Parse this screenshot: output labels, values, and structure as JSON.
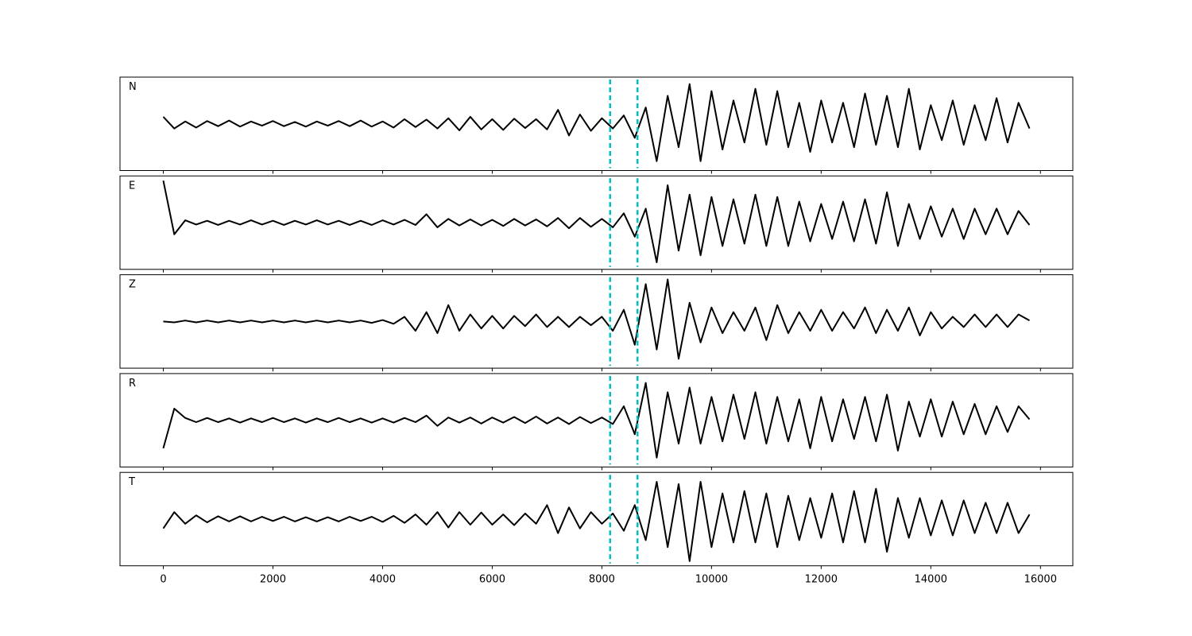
{
  "chart_data": {
    "type": "line",
    "subplots": true,
    "line_color": "#000000",
    "vlines": [
      8150,
      8650
    ],
    "vline_color": "#00bfbf",
    "xlim": [
      -790,
      16590
    ],
    "ylim": [
      -1,
      1
    ],
    "xticks": [
      0,
      2000,
      4000,
      6000,
      8000,
      10000,
      12000,
      14000,
      16000
    ],
    "x": [
      0,
      200,
      400,
      600,
      800,
      1000,
      1200,
      1400,
      1600,
      1800,
      2000,
      2200,
      2400,
      2600,
      2800,
      3000,
      3200,
      3400,
      3600,
      3800,
      4000,
      4200,
      4400,
      4600,
      4800,
      5000,
      5200,
      5400,
      5600,
      5800,
      6000,
      6200,
      6400,
      6600,
      6800,
      7000,
      7200,
      7400,
      7600,
      7800,
      8000,
      8200,
      8400,
      8600,
      8800,
      9000,
      9200,
      9400,
      9600,
      9800,
      10000,
      10200,
      10400,
      10600,
      10800,
      11000,
      11200,
      11400,
      11600,
      11800,
      12000,
      12200,
      12400,
      12600,
      12800,
      13000,
      13200,
      13400,
      13600,
      13800,
      14000,
      14200,
      14400,
      14600,
      14800,
      15000,
      15200,
      15400,
      15600,
      15800
    ],
    "series": [
      {
        "name": "N",
        "values": [
          0.15,
          -0.1,
          0.05,
          -0.08,
          0.06,
          -0.05,
          0.07,
          -0.06,
          0.05,
          -0.04,
          0.06,
          -0.05,
          0.04,
          -0.06,
          0.05,
          -0.04,
          0.06,
          -0.05,
          0.07,
          -0.06,
          0.05,
          -0.08,
          0.1,
          -0.07,
          0.09,
          -0.1,
          0.12,
          -0.14,
          0.15,
          -0.12,
          0.1,
          -0.13,
          0.11,
          -0.09,
          0.1,
          -0.12,
          0.3,
          -0.25,
          0.2,
          -0.15,
          0.12,
          -0.1,
          0.18,
          -0.3,
          0.35,
          -0.8,
          0.6,
          -0.5,
          0.85,
          -0.8,
          0.7,
          -0.55,
          0.5,
          -0.4,
          0.75,
          -0.45,
          0.7,
          -0.5,
          0.45,
          -0.6,
          0.5,
          -0.4,
          0.45,
          -0.5,
          0.65,
          -0.45,
          0.6,
          -0.5,
          0.75,
          -0.55,
          0.4,
          -0.35,
          0.5,
          -0.45,
          0.4,
          -0.35,
          0.55,
          -0.4,
          0.45,
          -0.1
        ]
      },
      {
        "name": "E",
        "values": [
          0.9,
          -0.25,
          0.05,
          -0.04,
          0.04,
          -0.05,
          0.04,
          -0.04,
          0.05,
          -0.04,
          0.04,
          -0.05,
          0.04,
          -0.04,
          0.05,
          -0.04,
          0.04,
          -0.05,
          0.04,
          -0.05,
          0.05,
          -0.04,
          0.06,
          -0.05,
          0.18,
          -0.1,
          0.08,
          -0.06,
          0.07,
          -0.06,
          0.06,
          -0.07,
          0.08,
          -0.06,
          0.07,
          -0.08,
          0.1,
          -0.12,
          0.1,
          -0.09,
          0.08,
          -0.1,
          0.2,
          -0.3,
          0.3,
          -0.85,
          0.8,
          -0.6,
          0.6,
          -0.7,
          0.55,
          -0.5,
          0.5,
          -0.45,
          0.6,
          -0.5,
          0.55,
          -0.5,
          0.45,
          -0.4,
          0.4,
          -0.35,
          0.45,
          -0.4,
          0.5,
          -0.45,
          0.65,
          -0.5,
          0.4,
          -0.35,
          0.35,
          -0.3,
          0.3,
          -0.35,
          0.3,
          -0.25,
          0.3,
          -0.25,
          0.25,
          -0.05
        ]
      },
      {
        "name": "Z",
        "values": [
          0.0,
          -0.02,
          0.02,
          -0.02,
          0.02,
          -0.02,
          0.02,
          -0.02,
          0.02,
          -0.02,
          0.02,
          -0.02,
          0.02,
          -0.02,
          0.02,
          -0.02,
          0.02,
          -0.02,
          0.02,
          -0.03,
          0.03,
          -0.05,
          0.1,
          -0.2,
          0.2,
          -0.25,
          0.35,
          -0.2,
          0.15,
          -0.15,
          0.12,
          -0.15,
          0.12,
          -0.1,
          0.15,
          -0.12,
          0.1,
          -0.12,
          0.1,
          -0.08,
          0.1,
          -0.2,
          0.25,
          -0.5,
          0.8,
          -0.6,
          0.9,
          -0.8,
          0.4,
          -0.45,
          0.3,
          -0.25,
          0.2,
          -0.2,
          0.3,
          -0.4,
          0.35,
          -0.25,
          0.2,
          -0.2,
          0.25,
          -0.2,
          0.2,
          -0.15,
          0.3,
          -0.25,
          0.25,
          -0.2,
          0.3,
          -0.3,
          0.2,
          -0.15,
          0.1,
          -0.12,
          0.15,
          -0.12,
          0.15,
          -0.12,
          0.15,
          0.02
        ]
      },
      {
        "name": "R",
        "values": [
          -0.6,
          0.25,
          0.05,
          -0.04,
          0.05,
          -0.04,
          0.04,
          -0.05,
          0.04,
          -0.04,
          0.05,
          -0.04,
          0.04,
          -0.05,
          0.04,
          -0.04,
          0.05,
          -0.04,
          0.04,
          -0.05,
          0.04,
          -0.05,
          0.05,
          -0.04,
          0.1,
          -0.12,
          0.06,
          -0.05,
          0.06,
          -0.07,
          0.06,
          -0.05,
          0.07,
          -0.06,
          0.08,
          -0.07,
          0.06,
          -0.08,
          0.07,
          -0.06,
          0.06,
          -0.08,
          0.3,
          -0.3,
          0.8,
          -0.8,
          0.6,
          -0.5,
          0.7,
          -0.5,
          0.5,
          -0.45,
          0.55,
          -0.4,
          0.6,
          -0.5,
          0.5,
          -0.45,
          0.45,
          -0.6,
          0.5,
          -0.45,
          0.45,
          -0.4,
          0.5,
          -0.45,
          0.55,
          -0.65,
          0.4,
          -0.35,
          0.45,
          -0.35,
          0.4,
          -0.3,
          0.35,
          -0.3,
          0.3,
          -0.25,
          0.3,
          0.02
        ]
      },
      {
        "name": "T",
        "values": [
          -0.2,
          0.15,
          -0.1,
          0.08,
          -0.07,
          0.06,
          -0.05,
          0.06,
          -0.05,
          0.05,
          -0.04,
          0.05,
          -0.05,
          0.04,
          -0.05,
          0.04,
          -0.05,
          0.05,
          -0.04,
          0.05,
          -0.06,
          0.07,
          -0.08,
          0.1,
          -0.12,
          0.15,
          -0.18,
          0.15,
          -0.12,
          0.14,
          -0.12,
          0.1,
          -0.13,
          0.12,
          -0.1,
          0.3,
          -0.3,
          0.25,
          -0.2,
          0.15,
          -0.1,
          0.12,
          -0.25,
          0.3,
          -0.45,
          0.8,
          -0.6,
          0.75,
          -0.9,
          0.8,
          -0.6,
          0.55,
          -0.5,
          0.6,
          -0.5,
          0.55,
          -0.6,
          0.5,
          -0.45,
          0.45,
          -0.4,
          0.55,
          -0.5,
          0.6,
          -0.5,
          0.65,
          -0.7,
          0.45,
          -0.4,
          0.45,
          -0.35,
          0.4,
          -0.35,
          0.4,
          -0.3,
          0.35,
          -0.3,
          0.35,
          -0.3,
          0.1
        ]
      }
    ]
  }
}
